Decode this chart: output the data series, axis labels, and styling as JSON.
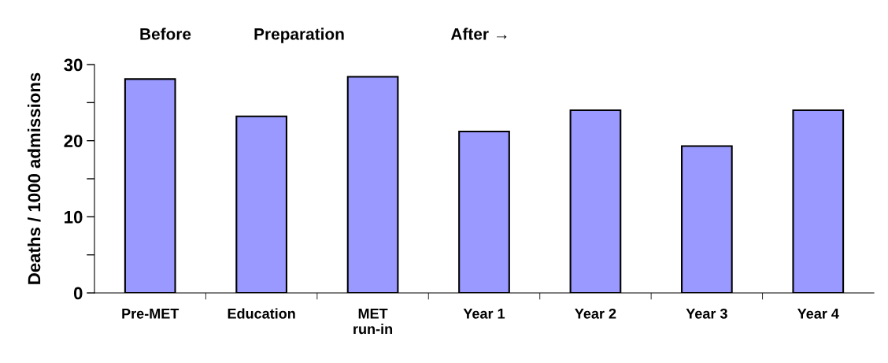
{
  "chart_data": {
    "type": "bar",
    "ylabel": "Deaths / 1000 admissions",
    "categories": [
      "Pre-MET",
      "Education",
      "MET\nrun-in",
      "Year 1",
      "Year 2",
      "Year 3",
      "Year 4"
    ],
    "values": [
      28.1,
      23.2,
      28.4,
      21.2,
      24.0,
      19.3,
      24.0
    ],
    "color": "#9999ff",
    "ylim": [
      0,
      30
    ],
    "yticks": [
      0,
      {
        "value": 5,
        "label": null
      },
      10,
      {
        "value": 15,
        "label": null
      },
      20,
      {
        "value": 25,
        "label": null
      },
      30
    ],
    "annotations": [
      "Before",
      "Preparation",
      "After →"
    ],
    "grid": false
  }
}
